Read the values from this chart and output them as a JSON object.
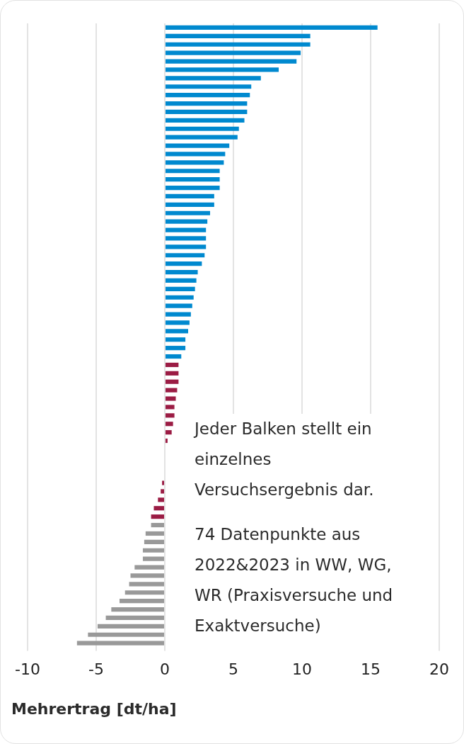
{
  "chart_data": {
    "type": "bar",
    "orientation": "horizontal",
    "xlabel": "Mehrertrag [dt/ha]",
    "annotations": [
      "Jeder Balken stellt ein einzelnes Versuchsergebnis dar.",
      "74 Datenpunkte aus 2022&2023 in WW, WG, WR (Praxisversuche und Exaktversuche)"
    ],
    "categories": [
      null,
      null,
      null,
      null,
      null,
      null,
      null,
      null,
      null,
      null,
      null,
      null,
      null,
      null,
      null,
      null,
      null,
      null,
      null,
      null,
      null,
      null,
      null,
      null,
      null,
      null,
      null,
      null,
      null,
      null,
      null,
      null,
      null,
      null,
      null,
      null,
      null,
      null,
      null,
      null,
      null,
      null,
      null,
      null,
      null,
      null,
      null,
      null,
      null,
      null,
      null,
      null,
      null,
      null,
      null,
      null,
      null,
      null,
      null,
      null,
      null,
      null,
      null,
      null,
      null,
      null,
      null,
      null,
      null,
      null,
      null,
      null,
      null,
      null
    ],
    "values": [
      15.5,
      10.6,
      10.6,
      9.9,
      9.6,
      8.3,
      7.0,
      6.3,
      6.2,
      6.0,
      6.0,
      5.8,
      5.4,
      5.3,
      4.7,
      4.4,
      4.3,
      4.0,
      4.0,
      4.0,
      3.6,
      3.6,
      3.3,
      3.1,
      3.0,
      3.0,
      3.0,
      2.9,
      2.7,
      2.4,
      2.3,
      2.2,
      2.1,
      2.0,
      1.9,
      1.8,
      1.7,
      1.5,
      1.5,
      1.2,
      1.0,
      1.0,
      1.0,
      0.9,
      0.8,
      0.7,
      0.7,
      0.6,
      0.5,
      0.2,
      0,
      0,
      0,
      0,
      -0.2,
      -0.3,
      -0.5,
      -0.8,
      -1.0,
      -1.0,
      -1.4,
      -1.5,
      -1.6,
      -1.6,
      -2.2,
      -2.5,
      -2.6,
      -2.9,
      -3.3,
      -3.9,
      -4.3,
      -4.9,
      -5.6,
      -6.4
    ],
    "colors": [
      "#0089cf",
      "#0089cf",
      "#0089cf",
      "#0089cf",
      "#0089cf",
      "#0089cf",
      "#0089cf",
      "#0089cf",
      "#0089cf",
      "#0089cf",
      "#0089cf",
      "#0089cf",
      "#0089cf",
      "#0089cf",
      "#0089cf",
      "#0089cf",
      "#0089cf",
      "#0089cf",
      "#0089cf",
      "#0089cf",
      "#0089cf",
      "#0089cf",
      "#0089cf",
      "#0089cf",
      "#0089cf",
      "#0089cf",
      "#0089cf",
      "#0089cf",
      "#0089cf",
      "#0089cf",
      "#0089cf",
      "#0089cf",
      "#0089cf",
      "#0089cf",
      "#0089cf",
      "#0089cf",
      "#0089cf",
      "#0089cf",
      "#0089cf",
      "#0089cf",
      "#9b1c44",
      "#9b1c44",
      "#9b1c44",
      "#9b1c44",
      "#9b1c44",
      "#9b1c44",
      "#9b1c44",
      "#9b1c44",
      "#9b1c44",
      "#9b1c44",
      "#9b1c44",
      "#9b1c44",
      "#9b1c44",
      "#9b1c44",
      "#9b1c44",
      "#9b1c44",
      "#9b1c44",
      "#9b1c44",
      "#9b1c44",
      "#999999",
      "#999999",
      "#999999",
      "#999999",
      "#999999",
      "#999999",
      "#999999",
      "#999999",
      "#999999",
      "#999999",
      "#999999",
      "#999999",
      "#999999",
      "#999999",
      "#999999"
    ],
    "xlim": [
      -10,
      20
    ],
    "xticks": [
      -10,
      -5,
      0,
      5,
      10,
      15,
      20
    ],
    "grid": "x"
  }
}
